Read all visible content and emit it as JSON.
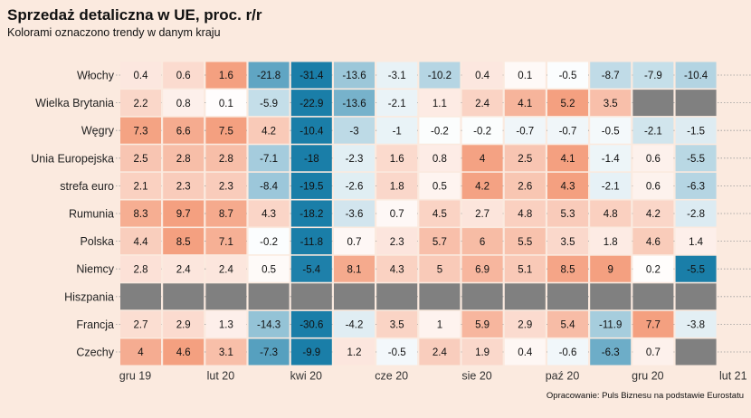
{
  "chart_data": {
    "type": "heatmap",
    "title": "Sprzedaż detaliczna w UE, proc. r/r",
    "subtitle": "Kolorami oznaczono trendy w danym kraju",
    "caption": "Opracowanie: Puls Biznesu na podstawie Eurostatu",
    "x_tick_labels": [
      "gru 19",
      "lut 20",
      "kwi 20",
      "cze 20",
      "sie 20",
      "paź 20",
      "gru 20",
      "lut 21"
    ],
    "colors": {
      "high": "#f4a080",
      "mid": "#ffffff",
      "low": "#1a7ea8",
      "missing": "#808080",
      "background": "#fbeadf"
    },
    "rows": [
      {
        "label": "Włochy",
        "values": [
          0.4,
          0.6,
          1.6,
          -21.8,
          -31.4,
          -13.6,
          -3.1,
          -10.2,
          0.4,
          0.1,
          -0.5,
          -8.7,
          -7.9,
          -10.4
        ]
      },
      {
        "label": "Wielka Brytania",
        "values": [
          2.2,
          0.8,
          0.1,
          -5.9,
          -22.9,
          -13.6,
          -2.1,
          1.1,
          2.4,
          4.1,
          5.2,
          3.5,
          null,
          null
        ]
      },
      {
        "label": "Węgry",
        "values": [
          7.3,
          6.6,
          7.5,
          4.2,
          -10.4,
          -3,
          -1,
          -0.2,
          -0.2,
          -0.7,
          -0.7,
          -0.5,
          -2.1,
          -1.5
        ]
      },
      {
        "label": "Unia Europejska",
        "values": [
          2.5,
          2.8,
          2.8,
          -7.1,
          -18,
          -2.3,
          1.6,
          0.8,
          4,
          2.5,
          4.1,
          -1.4,
          0.6,
          -5.5
        ]
      },
      {
        "label": "strefa euro",
        "values": [
          2.1,
          2.3,
          2.3,
          -8.4,
          -19.5,
          -2.6,
          1.8,
          0.5,
          4.2,
          2.6,
          4.3,
          -2.1,
          0.6,
          -6.3
        ]
      },
      {
        "label": "Rumunia",
        "values": [
          8.3,
          9.7,
          8.7,
          4.3,
          -18.2,
          -3.6,
          0.7,
          4.5,
          2.7,
          4.8,
          5.3,
          4.8,
          4.2,
          -2.8
        ]
      },
      {
        "label": "Polska",
        "values": [
          4.4,
          8.5,
          7.1,
          -0.2,
          -11.8,
          0.7,
          2.3,
          5.7,
          6,
          5.5,
          3.5,
          1.8,
          4.6,
          1.4
        ]
      },
      {
        "label": "Niemcy",
        "values": [
          2.8,
          2.4,
          2.4,
          0.5,
          -5.4,
          8.1,
          4.3,
          5,
          6.9,
          5.1,
          8.5,
          9,
          0.2,
          -5.5
        ]
      },
      {
        "label": "Hiszpania",
        "values": [
          null,
          null,
          null,
          null,
          null,
          null,
          null,
          null,
          null,
          null,
          null,
          null,
          null,
          null
        ]
      },
      {
        "label": "Francja",
        "values": [
          2.7,
          2.9,
          1.3,
          -14.3,
          -30.6,
          -4.2,
          3.5,
          1,
          5.9,
          2.9,
          5.4,
          -11.9,
          7.7,
          -3.8
        ]
      },
      {
        "label": "Czechy",
        "values": [
          4,
          4.6,
          3.1,
          -7.3,
          -9.9,
          1.2,
          -0.5,
          2.4,
          1.9,
          0.4,
          -0.6,
          -6.3,
          0.7,
          null
        ]
      }
    ]
  }
}
